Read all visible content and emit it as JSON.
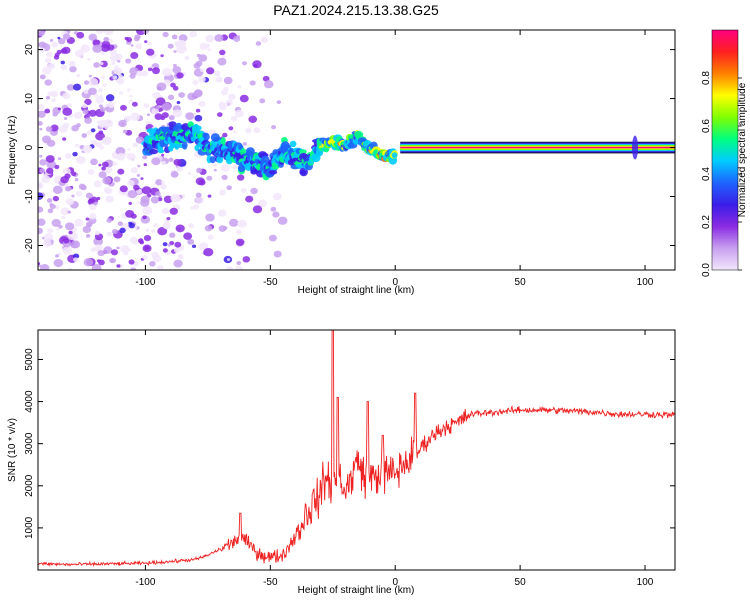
{
  "title": "PAZ1.2024.215.13.38.G25",
  "chart_data": [
    {
      "type": "heatmap",
      "xlabel": "Height of straight line (km)",
      "ylabel": "Frequency (Hz)",
      "xlim": [
        -143,
        112
      ],
      "ylim": [
        -25,
        24
      ],
      "x_ticks": [
        -100,
        -50,
        0,
        50,
        100
      ],
      "x_tick_labels": [
        "-100",
        "-50",
        "0",
        "50",
        "100"
      ],
      "y_ticks": [
        -20,
        -10,
        0,
        10,
        20
      ],
      "y_tick_labels": [
        "-20",
        "-10",
        "0",
        "10",
        "20"
      ],
      "colorbar": {
        "label": "Normalized spectral amplitude",
        "range": [
          0,
          1
        ],
        "ticks": [
          0.0,
          0.2,
          0.4,
          0.6,
          0.8
        ],
        "tick_labels": [
          "0.0",
          "0.2",
          "0.4",
          "0.6",
          "0.8"
        ],
        "colors": [
          "#f2e6fb",
          "#c8a0f0",
          "#8a2be2",
          "#3a1ee8",
          "#1e64ff",
          "#00ccff",
          "#00ff80",
          "#7fff00",
          "#ffff00",
          "#ff8000",
          "#ff2020",
          "#ff0080"
        ]
      },
      "ridge": {
        "x": [
          -100,
          -90,
          -80,
          -75,
          -70,
          -65,
          -60,
          -55,
          -50,
          -45,
          -40,
          -35,
          -30,
          -25,
          -20,
          -15,
          -10,
          -5,
          0,
          5,
          10,
          20,
          50,
          100,
          112
        ],
        "freq_hz": [
          1.0,
          2.0,
          3.0,
          0.0,
          -1.0,
          -0.5,
          -2.5,
          -3.0,
          -4.0,
          -1.0,
          -2.0,
          -3.0,
          0.5,
          1.0,
          0.5,
          2.0,
          -0.5,
          -1.5,
          -1.5,
          0.5,
          0.5,
          0.0,
          0.0,
          0.0,
          0.0
        ]
      }
    },
    {
      "type": "line",
      "xlabel": "Height of straight line (km)",
      "ylabel": "SNR (10 * v/v)",
      "xlim": [
        -143,
        112
      ],
      "ylim": [
        0,
        5700
      ],
      "x_ticks": [
        -100,
        -50,
        0,
        50,
        100
      ],
      "x_tick_labels": [
        "-100",
        "-50",
        "0",
        "50",
        "100"
      ],
      "y_ticks": [
        1000,
        2000,
        3000,
        4000,
        5000
      ],
      "y_tick_labels": [
        "1000",
        "2000",
        "3000",
        "4000",
        "5000"
      ],
      "series": [
        {
          "color": "#ee2222",
          "x": [
            -143,
            -130,
            -120,
            -110,
            -100,
            -90,
            -80,
            -75,
            -70,
            -65,
            -62,
            -60,
            -55,
            -50,
            -45,
            -40,
            -35,
            -30,
            -28,
            -25,
            -22,
            -20,
            -15,
            -12,
            -10,
            -5,
            0,
            5,
            10,
            15,
            20,
            25,
            30,
            40,
            50,
            60,
            70,
            80,
            90,
            100,
            112
          ],
          "y": [
            150,
            130,
            140,
            150,
            160,
            200,
            250,
            350,
            500,
            650,
            800,
            700,
            400,
            300,
            350,
            800,
            1400,
            1800,
            2200,
            2000,
            2300,
            1800,
            2600,
            2200,
            2200,
            2300,
            2300,
            2600,
            2900,
            3200,
            3400,
            3500,
            3700,
            3750,
            3800,
            3800,
            3780,
            3750,
            3700,
            3700,
            3680
          ]
        }
      ],
      "spikes": [
        {
          "x": -62,
          "y": 1350
        },
        {
          "x": -25,
          "y": 5750
        },
        {
          "x": -23,
          "y": 4100
        },
        {
          "x": -11,
          "y": 4000
        },
        {
          "x": -5,
          "y": 3200
        },
        {
          "x": 8,
          "y": 4200
        }
      ]
    }
  ]
}
